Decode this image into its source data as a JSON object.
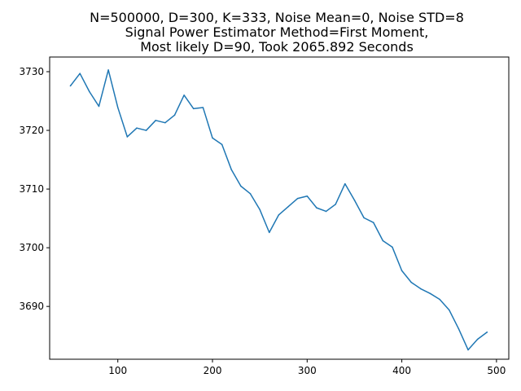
{
  "chart_data": {
    "type": "line",
    "title_lines": [
      "N=500000, D=300, K=333, Noise Mean=0, Noise STD=8",
      "Signal Power Estimator Method=First Moment,",
      "Most likely D=90, Took 2065.892 Seconds"
    ],
    "xlabel": "",
    "ylabel": "",
    "xlim": [
      28,
      513
    ],
    "ylim": [
      3681,
      3732.5
    ],
    "xticks": [
      100,
      200,
      300,
      400,
      500
    ],
    "yticks": [
      3690,
      3700,
      3710,
      3720,
      3730
    ],
    "grid": false,
    "line_color": "#1f77b4",
    "series": [
      {
        "x": [
          50,
          60,
          70,
          80,
          90,
          100,
          110,
          120,
          130,
          140,
          150,
          160,
          170,
          180,
          190,
          200,
          210,
          220,
          230,
          240,
          250,
          260,
          270,
          280,
          290,
          300,
          310,
          320,
          330,
          340,
          350,
          360,
          370,
          380,
          390,
          400,
          410,
          420,
          430,
          440,
          450,
          460,
          470,
          480,
          490
        ],
        "values": [
          3727.6,
          3729.7,
          3726.6,
          3724.1,
          3730.3,
          3723.9,
          3718.9,
          3720.4,
          3720.0,
          3721.7,
          3721.3,
          3722.6,
          3726.0,
          3723.7,
          3723.9,
          3718.7,
          3717.6,
          3713.3,
          3710.5,
          3709.2,
          3706.5,
          3702.6,
          3705.6,
          3707.0,
          3708.4,
          3708.8,
          3706.8,
          3706.2,
          3707.4,
          3710.9,
          3708.1,
          3705.1,
          3704.3,
          3701.2,
          3700.1,
          3696.1,
          3694.1,
          3693.0,
          3692.2,
          3691.2,
          3689.4,
          3686.2,
          3682.6,
          3684.4,
          3685.6
        ]
      }
    ]
  }
}
